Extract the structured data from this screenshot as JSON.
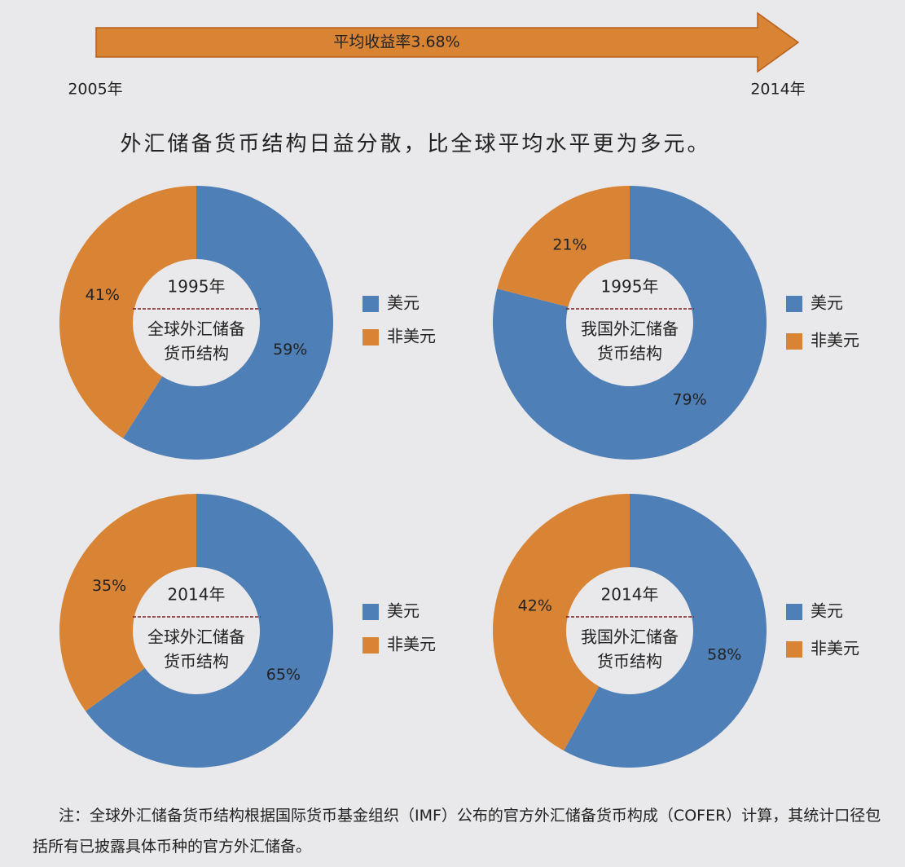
{
  "arrow": {
    "label": "平均收益率3.68%",
    "start": "2005年",
    "end": "2014年"
  },
  "headline": "外汇储备货币结构日益分散，比全球平均水平更为多元。",
  "chart_data": [
    {
      "type": "donut",
      "year": "1995年",
      "title": [
        "全球外汇储备",
        "货币结构"
      ],
      "categories": [
        "美元",
        "非美元"
      ],
      "values": [
        59,
        41
      ],
      "value_labels": [
        "59%",
        "41%"
      ],
      "colors": [
        "#4e7fb6",
        "#d98335"
      ]
    },
    {
      "type": "donut",
      "year": "1995年",
      "title": [
        "我国外汇储备",
        "货币结构"
      ],
      "categories": [
        "美元",
        "非美元"
      ],
      "values": [
        79,
        21
      ],
      "value_labels": [
        "79%",
        "21%"
      ],
      "colors": [
        "#4e7fb6",
        "#d98335"
      ]
    },
    {
      "type": "donut",
      "year": "2014年",
      "title": [
        "全球外汇储备",
        "货币结构"
      ],
      "categories": [
        "美元",
        "非美元"
      ],
      "values": [
        65,
        35
      ],
      "value_labels": [
        "65%",
        "35%"
      ],
      "colors": [
        "#4e7fb6",
        "#d98335"
      ]
    },
    {
      "type": "donut",
      "year": "2014年",
      "title": [
        "我国外汇储备",
        "货币结构"
      ],
      "categories": [
        "美元",
        "非美元"
      ],
      "values": [
        58,
        42
      ],
      "value_labels": [
        "58%",
        "42%"
      ],
      "colors": [
        "#4e7fb6",
        "#d98335"
      ]
    }
  ],
  "note": "注：全球外汇储备货币结构根据国际货币基金组织（IMF）公布的官方外汇储备货币构成（COFER）计算，其统计口径包括所有已披露具体币种的官方外汇储备。"
}
